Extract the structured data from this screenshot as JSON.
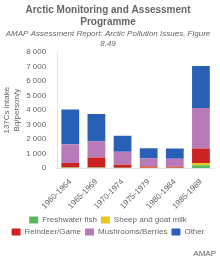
{
  "chart_data": {
    "type": "bar",
    "title": "Arctic Monitoring and Assessment Programme",
    "subtitle": "AMAP Assessment Report: Arctic Pollution Issues, Figure 8.49",
    "ylabel": [
      "137Cs intake",
      "Bq/person/y"
    ],
    "categories": [
      "1960-1964",
      "1965-1969",
      "1970-1974",
      "1975-1979",
      "1980-1984",
      "1985-1989"
    ],
    "series": [
      {
        "name": "Freshwater fish",
        "color": "#5ab85a",
        "values": [
          30,
          20,
          20,
          10,
          10,
          200
        ]
      },
      {
        "name": "Sheep and goat milk",
        "color": "#e8c820",
        "values": [
          20,
          20,
          10,
          10,
          10,
          150
        ]
      },
      {
        "name": "Reindeer/Game",
        "color": "#cc2222",
        "values": [
          300,
          700,
          200,
          100,
          80,
          1000
        ]
      },
      {
        "name": "Mushrooms/Berries",
        "color": "#b87ab8",
        "values": [
          1300,
          1100,
          900,
          550,
          550,
          2800
        ]
      },
      {
        "name": "Other",
        "color": "#2860b8",
        "values": [
          2400,
          1900,
          1100,
          700,
          700,
          2900
        ]
      }
    ],
    "stacked": true,
    "ylim": [
      0,
      8000
    ],
    "yticks": [
      0,
      {
        "value": 1000,
        "label": "1 000"
      },
      {
        "value": 2000,
        "label": "2 000"
      },
      {
        "value": 3000,
        "label": "3 000"
      },
      {
        "value": 4000,
        "label": "4 000"
      },
      {
        "value": 5000,
        "label": "5 000"
      },
      {
        "value": 6000,
        "label": "6 000"
      },
      {
        "value": 7000,
        "label": "7 000"
      },
      {
        "value": 8000,
        "label": "8 000"
      }
    ],
    "grid": false,
    "legend": "bottom",
    "annotations": [
      "AMAP"
    ]
  }
}
